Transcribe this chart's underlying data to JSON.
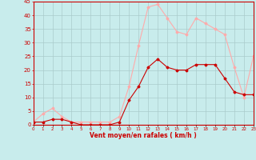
{
  "hours": [
    0,
    1,
    2,
    3,
    4,
    5,
    6,
    7,
    8,
    9,
    10,
    11,
    12,
    13,
    14,
    15,
    16,
    17,
    18,
    19,
    20,
    21,
    22,
    23
  ],
  "wind_avg": [
    1,
    1,
    2,
    2,
    1,
    0,
    0,
    0,
    0,
    1,
    9,
    14,
    21,
    24,
    21,
    20,
    20,
    22,
    22,
    22,
    17,
    12,
    11,
    11
  ],
  "wind_gust": [
    1,
    4,
    6,
    3,
    1,
    1,
    1,
    1,
    1,
    3,
    14,
    29,
    43,
    44,
    39,
    34,
    33,
    39,
    37,
    35,
    33,
    21,
    10,
    25
  ],
  "wind_avg_color": "#cc0000",
  "wind_gust_color": "#ffaaaa",
  "bg_color": "#c8ecec",
  "grid_color": "#aacccc",
  "xlabel": "Vent moyen/en rafales ( km/h )",
  "xlabel_color": "#cc0000",
  "tick_color": "#cc0000",
  "ylim": [
    0,
    45
  ],
  "yticks": [
    0,
    5,
    10,
    15,
    20,
    25,
    30,
    35,
    40,
    45
  ]
}
